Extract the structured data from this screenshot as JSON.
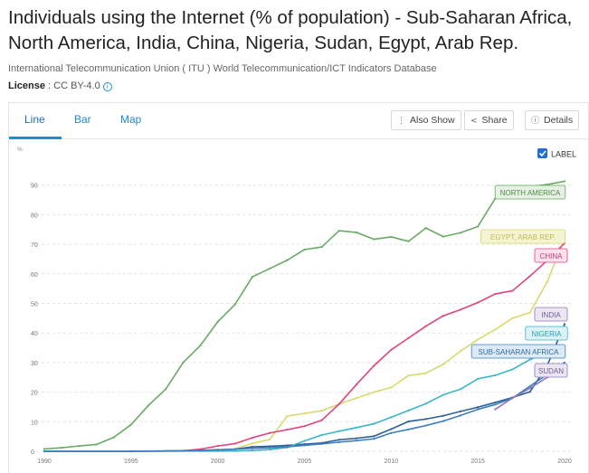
{
  "header": {
    "title": "Individuals using the Internet (% of population) - Sub-Saharan Africa, North America, India, China, Nigeria, Sudan, Egypt, Arab Rep.",
    "source": "International Telecommunication Union ( ITU ) World Telecommunication/ICT Indicators Database",
    "license_label": "License",
    "license_value": " : CC BY-4.0"
  },
  "tabs": {
    "line": "Line",
    "bar": "Bar",
    "map": "Map"
  },
  "actions": {
    "also_show": "Also Show",
    "share": "Share",
    "details": "Details"
  },
  "label_toggle": {
    "text": "LABEL",
    "checked": true
  },
  "colors": {
    "accent": "#1f8ad8",
    "north_america": "#6aaa64",
    "egypt": "#d9d96a",
    "china": "#e0437f",
    "india": "#2d5f96",
    "nigeria": "#3bb5c9",
    "ssa": "#3d7fbf",
    "sudan": "#8b78b8"
  },
  "chart_data": {
    "type": "line",
    "ylabel": "%",
    "ylim": [
      0,
      95
    ],
    "xlim": [
      1990,
      2020
    ],
    "yticks": [
      0,
      10,
      20,
      30,
      40,
      50,
      60,
      70,
      80,
      90
    ],
    "xticks": [
      1990,
      1995,
      2000,
      2005,
      2010,
      2015,
      2020
    ],
    "grid": true,
    "series": [
      {
        "name": "NORTH AMERICA",
        "color": "#6aaa64",
        "x": [
          1990,
          1991,
          1992,
          1993,
          1994,
          1995,
          1996,
          1997,
          1998,
          1999,
          2000,
          2001,
          2002,
          2003,
          2004,
          2005,
          2006,
          2007,
          2008,
          2009,
          2010,
          2011,
          2012,
          2013,
          2014,
          2015,
          2016,
          2017,
          2018,
          2019,
          2020
        ],
        "y": [
          0.8,
          1.2,
          1.8,
          2.3,
          4.7,
          9.0,
          15.5,
          21.0,
          30.0,
          35.8,
          43.8,
          49.7,
          59.0,
          61.8,
          64.6,
          68.2,
          69.1,
          74.6,
          74.0,
          71.7,
          72.5,
          71.0,
          75.5,
          72.6,
          73.9,
          76.0,
          85.5,
          88.0,
          89.5,
          90.2,
          91.3
        ]
      },
      {
        "name": "EGYPT, ARAB REP.",
        "color": "#d9d96a",
        "x": [
          1990,
          1995,
          1998,
          1999,
          2000,
          2001,
          2002,
          2003,
          2004,
          2005,
          2006,
          2007,
          2008,
          2009,
          2010,
          2011,
          2012,
          2013,
          2014,
          2015,
          2016,
          2017,
          2018,
          2019,
          2020
        ],
        "y": [
          0,
          0,
          0.1,
          0.3,
          0.6,
          0.8,
          2.7,
          4.0,
          11.9,
          12.8,
          13.7,
          16.0,
          18.0,
          20.0,
          21.6,
          25.6,
          26.4,
          29.4,
          33.9,
          37.8,
          41.2,
          45.0,
          46.9,
          57.3,
          71.9
        ]
      },
      {
        "name": "CHINA",
        "color": "#e0437f",
        "x": [
          1990,
          1995,
          1997,
          1998,
          1999,
          2000,
          2001,
          2002,
          2003,
          2004,
          2005,
          2006,
          2007,
          2008,
          2009,
          2010,
          2011,
          2012,
          2013,
          2014,
          2015,
          2016,
          2017,
          2018,
          2019,
          2020
        ],
        "y": [
          0,
          0,
          0.1,
          0.2,
          0.7,
          1.8,
          2.6,
          4.6,
          6.2,
          7.3,
          8.5,
          10.5,
          16.0,
          22.6,
          28.9,
          34.3,
          38.3,
          42.3,
          45.8,
          47.9,
          50.3,
          53.2,
          54.3,
          59.2,
          64.5,
          70.4
        ]
      },
      {
        "name": "INDIA",
        "color": "#2d5f96",
        "x": [
          1990,
          1995,
          1998,
          1999,
          2000,
          2001,
          2002,
          2003,
          2004,
          2005,
          2006,
          2007,
          2008,
          2009,
          2010,
          2011,
          2012,
          2013,
          2014,
          2015,
          2016,
          2017,
          2018,
          2019,
          2020
        ],
        "y": [
          0,
          0,
          0.1,
          0.3,
          0.5,
          0.7,
          1.5,
          1.7,
          2.0,
          2.4,
          2.8,
          3.9,
          4.4,
          5.1,
          7.5,
          10.1,
          10.9,
          12.0,
          13.5,
          14.9,
          16.5,
          18.2,
          20.1,
          29.0,
          43.0
        ]
      },
      {
        "name": "NIGERIA",
        "color": "#3bb5c9",
        "x": [
          1990,
          1995,
          1999,
          2000,
          2001,
          2002,
          2003,
          2004,
          2005,
          2006,
          2007,
          2008,
          2009,
          2010,
          2011,
          2012,
          2013,
          2014,
          2015,
          2016,
          2017,
          2018,
          2019,
          2020
        ],
        "y": [
          0,
          0,
          0.05,
          0.06,
          0.1,
          0.3,
          0.6,
          1.3,
          3.5,
          5.5,
          6.8,
          8.0,
          9.3,
          11.5,
          13.8,
          16.1,
          19.1,
          21.0,
          24.5,
          25.7,
          27.7,
          31.0,
          33.6,
          35.5
        ]
      },
      {
        "name": "SUB-SAHARAN AFRICA",
        "color": "#3d7fbf",
        "x": [
          1990,
          1995,
          1999,
          2000,
          2001,
          2002,
          2003,
          2004,
          2005,
          2006,
          2007,
          2008,
          2009,
          2010,
          2011,
          2012,
          2013,
          2014,
          2015,
          2016,
          2017,
          2018,
          2019,
          2020
        ],
        "y": [
          0,
          0,
          0.3,
          0.5,
          0.7,
          1.0,
          1.2,
          1.5,
          2.0,
          2.5,
          3.1,
          3.6,
          4.2,
          6.2,
          7.4,
          8.7,
          10.2,
          12.1,
          14.2,
          15.8,
          18.0,
          22.0,
          26.0,
          30.0
        ]
      },
      {
        "name": "SUDAN",
        "color": "#8b78b8",
        "x": [
          2016,
          2017,
          2018,
          2019,
          2020
        ],
        "y": [
          14.2,
          18.0,
          21.3,
          25.0,
          28.4
        ]
      }
    ]
  }
}
